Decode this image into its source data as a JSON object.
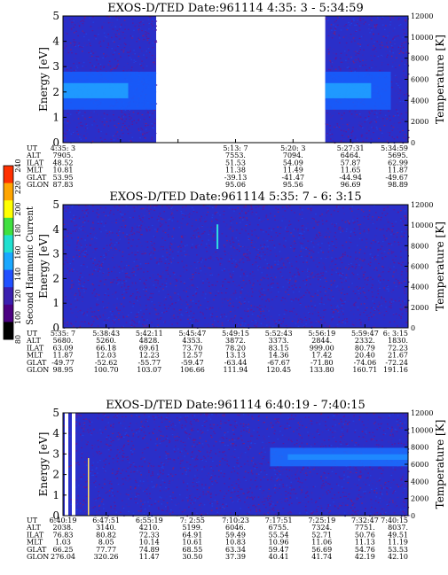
{
  "chart_data": [
    {
      "type": "heatmap",
      "title": "EXOS-D/TED   Date:961114  4:35: 3 - 5:34:59",
      "ylabel": "Energy [eV]",
      "y2label": "Temperature [K]",
      "yticks": [
        "0",
        "1",
        "2",
        "3",
        "4",
        "5"
      ],
      "y2ticks": [
        "0",
        "2000",
        "4000",
        "6000",
        "8000",
        "10000",
        "12000"
      ],
      "ylim": [
        0,
        5
      ],
      "y2lim": [
        0,
        12000
      ],
      "data_segments": [
        [
          0.0,
          0.27
        ],
        [
          0.76,
          1.0
        ]
      ],
      "band": {
        "from_eV": 1.3,
        "to_eV": 2.8,
        "fade_to_x": 0.95
      },
      "rows": [
        {
          "label": "UT",
          "values": [
            "4:35: 3",
            "",
            "",
            "5:13: 7",
            "5:20: 3",
            "5:27:31",
            "5:34:59"
          ]
        },
        {
          "label": "ALT",
          "values": [
            "7905.",
            "",
            "",
            "7553.",
            "7094.",
            "6464.",
            "5695."
          ]
        },
        {
          "label": "ILAT",
          "values": [
            "48.52",
            "",
            "",
            "51.53",
            "54.09",
            "57.87",
            "62.99"
          ]
        },
        {
          "label": "MLT",
          "values": [
            "10.81",
            "",
            "",
            "11.38",
            "11.49",
            "11.65",
            "11.87"
          ]
        },
        {
          "label": "GLAT",
          "values": [
            "53.95",
            "",
            "",
            "-39.13",
            "-41.47",
            "-44.94",
            "-49.67"
          ]
        },
        {
          "label": "GLON",
          "values": [
            "87.83",
            "",
            "",
            "95.06",
            "95.56",
            "96.69",
            "98.89"
          ]
        }
      ]
    },
    {
      "type": "heatmap",
      "title": "EXOS-D/TED   Date:961114  5:35: 7 - 6: 3:15",
      "ylabel": "Energy [eV]",
      "y2label": "Temperature [K]",
      "yticks": [
        "0",
        "1",
        "2",
        "3",
        "4",
        "5"
      ],
      "y2ticks": [
        "0",
        "2000",
        "4000",
        "6000",
        "8000",
        "10000",
        "12000"
      ],
      "ylim": [
        0,
        5
      ],
      "y2lim": [
        0,
        12000
      ],
      "spike": {
        "x": 0.445,
        "from_eV": 3.2,
        "to_eV": 4.2
      },
      "rows": [
        {
          "label": "UT",
          "values": [
            "5:35: 7",
            "5:38:43",
            "5:42:11",
            "5:45:47",
            "5:49:15",
            "5:52:43",
            "5:56:19",
            "5:59:47",
            "6: 3:15"
          ]
        },
        {
          "label": "ALT",
          "values": [
            "5680.",
            "5260.",
            "4828.",
            "4353.",
            "3872.",
            "3373.",
            "2844.",
            "2332.",
            "1830."
          ]
        },
        {
          "label": "ILAT",
          "values": [
            "63.09",
            "66.18",
            "69.61",
            "73.70",
            "78.20",
            "83.15",
            "999.00",
            "80.79",
            "72.23"
          ]
        },
        {
          "label": "MLT",
          "values": [
            "11.87",
            "12.03",
            "12.23",
            "12.57",
            "13.13",
            "14.36",
            "17.42",
            "20.40",
            "21.67"
          ]
        },
        {
          "label": "GLAT",
          "values": [
            "-49.77",
            "-52.62",
            "-55.77",
            "-59.47",
            "-63.44",
            "-67.67",
            "-71.80",
            "-74.06",
            "-72.24"
          ]
        },
        {
          "label": "GLON",
          "values": [
            "98.95",
            "100.70",
            "103.07",
            "106.66",
            "111.94",
            "120.45",
            "133.80",
            "160.71",
            "191.16"
          ]
        }
      ]
    },
    {
      "type": "heatmap",
      "title": "EXOS-D/TED   Date:961114  6:40:19 - 7:40:15",
      "ylabel": "Energy [eV]",
      "y2label": "Temperature [K]",
      "yticks": [
        "0",
        "1",
        "2",
        "3",
        "4",
        "5"
      ],
      "y2ticks": [
        "0",
        "2000",
        "4000",
        "6000",
        "8000",
        "10000",
        "12000"
      ],
      "ylim": [
        0,
        5
      ],
      "y2lim": [
        0,
        12000
      ],
      "band": {
        "from_eV": 2.4,
        "to_eV": 3.3,
        "starts_x": 0.6
      },
      "rows": [
        {
          "label": "UT",
          "values": [
            "6:40:19",
            "6:47:51",
            "6:55:19",
            "7: 2:55",
            "7:10:23",
            "7:17:51",
            "7:25:19",
            "7:32:47",
            "7:40:15"
          ]
        },
        {
          "label": "ALT",
          "values": [
            "2038.",
            "3140.",
            "4210.",
            "5199.",
            "6046.",
            "6755.",
            "7324.",
            "7751.",
            "8037."
          ]
        },
        {
          "label": "ILAT",
          "values": [
            "76.83",
            "80.82",
            "72.33",
            "64.91",
            "59.49",
            "55.54",
            "52.71",
            "50.76",
            "49.51"
          ]
        },
        {
          "label": "MLT",
          "values": [
            "1.03",
            "8.05",
            "10.14",
            "10.61",
            "10.83",
            "10.96",
            "11.06",
            "11.13",
            "11.19"
          ]
        },
        {
          "label": "GLAT",
          "values": [
            "66.25",
            "77.77",
            "74.89",
            "68.55",
            "63.34",
            "59.47",
            "56.69",
            "54.76",
            "53.53"
          ]
        },
        {
          "label": "GLON",
          "values": [
            "276.04",
            "320.26",
            "11.47",
            "30.50",
            "37.39",
            "40.41",
            "41.74",
            "42.19",
            "42.10"
          ]
        }
      ]
    }
  ],
  "colorbar": {
    "label": "Second Harmonic Current",
    "ticks": [
      "80",
      "100",
      "120",
      "140",
      "160",
      "180",
      "200",
      "220",
      "240"
    ],
    "colors": [
      "#000000",
      "#4b0082",
      "#3a1fb0",
      "#2050ff",
      "#1aa8ff",
      "#20e0d0",
      "#40e040",
      "#ffff00",
      "#ffa500",
      "#ff3000"
    ]
  }
}
